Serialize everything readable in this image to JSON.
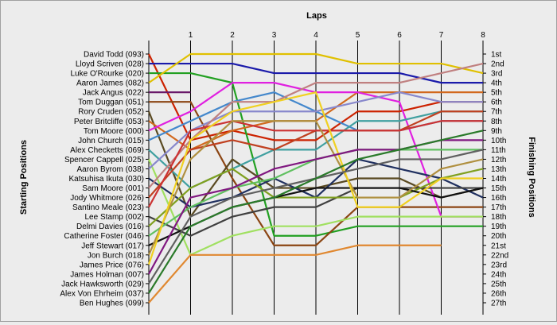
{
  "chart_data": {
    "type": "line",
    "title": "",
    "xlabel": "Laps",
    "ylabel_left": "Starting Positions",
    "ylabel_right": "Finishing Positions",
    "x": [
      0,
      1,
      2,
      3,
      4,
      5,
      6,
      7,
      8
    ],
    "x_tick_labels": [
      "1",
      "2",
      "3",
      "4",
      "5",
      "6",
      "7",
      "8"
    ],
    "y_range": [
      1,
      27
    ],
    "y_inverted": true,
    "grid": true,
    "grid_axis": "x",
    "starting_labels": [
      "David Todd (093)",
      "Lloyd Scriven (028)",
      "Luke O'Rourke (020)",
      "Aaron James (082)",
      "Jack Angus (022)",
      "Tom Duggan (051)",
      "Rory Cruden (052)",
      "Peter Britcliffe (053)",
      "Tom Moore (000)",
      "John Church (015)",
      "Alex Checketts (069)",
      "Spencer Cappell (025)",
      "Aaron Byrom (038)",
      "Katsuhisa Ikuta (030)",
      "Sam Moore (001)",
      "Jody Whitmore (026)",
      "Santino Meale (023)",
      "Lee Stamp (002)",
      "Delmi Davies (016)",
      "Catherine Foster (046)",
      "Jeff Stewart (017)",
      "Jon Burch (018)",
      "James Price (076)",
      "James Holman (007)",
      "Jack Hawksworth (029)",
      "Alex Von Ehrheim (037)",
      "Ben Hughes (099)"
    ],
    "finishing_labels": [
      "1st",
      "2nd",
      "3rd",
      "4th",
      "5th",
      "6th",
      "7th",
      "8th",
      "9th",
      "10th",
      "11th",
      "12th",
      "13th",
      "14th",
      "15th",
      "16th",
      "17th",
      "18th",
      "19th",
      "20th",
      "21st",
      "22nd",
      "23rd",
      "24th",
      "25th",
      "26th",
      "27th"
    ],
    "series": [
      {
        "start": 1,
        "color": "#cc2200",
        "positions": [
          1,
          10,
          9,
          10,
          10,
          7,
          7,
          6,
          6
        ]
      },
      {
        "start": 2,
        "color": "#1a1aaa",
        "positions": [
          2,
          2,
          2,
          3,
          3,
          3,
          3,
          4,
          4
        ]
      },
      {
        "start": 3,
        "color": "#22a022",
        "positions": [
          3,
          3,
          4,
          20,
          20,
          19,
          19,
          19,
          19
        ]
      },
      {
        "start": 4,
        "color": "#e0c000",
        "positions": [
          4,
          1,
          1,
          1,
          1,
          2,
          2,
          2,
          3
        ]
      },
      {
        "start": 5,
        "color": "#6a1a6a",
        "positions": [
          5,
          5
        ]
      },
      {
        "start": 6,
        "color": "#8b4513",
        "positions": [
          6,
          6,
          14,
          21,
          21,
          17,
          17,
          17,
          17
        ]
      },
      {
        "start": 7,
        "color": "#5a4a22",
        "positions": [
          7,
          18,
          12,
          15,
          15,
          14,
          14,
          16,
          15
        ]
      },
      {
        "start": 8,
        "color": "#d2691e",
        "positions": [
          8,
          11,
          9,
          8,
          8,
          5,
          5,
          5,
          5
        ]
      },
      {
        "start": 9,
        "color": "#e020e0",
        "positions": [
          9,
          7,
          4,
          4,
          5,
          5,
          6,
          18,
          18
        ]
      },
      {
        "start": 10,
        "color": "#4488cc",
        "positions": [
          10,
          8,
          6,
          5,
          7,
          9,
          9,
          8,
          8
        ]
      },
      {
        "start": 11,
        "color": "#40a0a0",
        "positions": [
          11,
          15,
          13,
          11,
          11,
          8,
          8,
          7,
          7
        ]
      },
      {
        "start": 12,
        "color": "#a0e060",
        "positions": [
          12,
          22,
          20,
          19,
          19,
          18,
          18,
          18,
          18
        ]
      },
      {
        "start": 13,
        "color": "#8888cc",
        "positions": [
          13,
          9,
          7,
          7,
          7,
          6,
          5,
          6,
          6
        ]
      },
      {
        "start": 14,
        "color": "#203060",
        "positions": [
          14,
          17,
          16,
          14,
          16,
          12,
          13,
          14,
          16
        ]
      },
      {
        "start": 15,
        "color": "#c08080",
        "positions": [
          15,
          10,
          6,
          6,
          4,
          4,
          4,
          3,
          2
        ]
      },
      {
        "start": 16,
        "color": "#c04020",
        "positions": [
          16,
          11,
          10,
          11,
          9,
          9,
          9,
          7,
          7
        ]
      },
      {
        "start": 17,
        "color": "#cc3333",
        "positions": [
          17,
          9,
          8,
          9,
          9,
          9,
          9,
          8,
          8
        ]
      },
      {
        "start": 18,
        "color": "#404040",
        "positions": [
          18,
          20,
          18,
          17,
          17,
          15,
          15,
          15,
          15
        ]
      },
      {
        "start": 19,
        "color": "#80a020",
        "positions": [
          19,
          15,
          13,
          16,
          16,
          16,
          16,
          14,
          13
        ]
      },
      {
        "start": 20,
        "color": "#60c060",
        "positions": [
          20,
          17,
          15,
          14,
          12,
          11,
          11,
          11,
          11
        ]
      },
      {
        "start": 21,
        "color": "#111111",
        "positions": [
          21,
          19,
          17,
          16,
          15,
          15,
          15,
          16,
          15
        ]
      },
      {
        "start": 22,
        "color": "#b09040",
        "positions": [
          22,
          12,
          8,
          8,
          8,
          16,
          16,
          13,
          12
        ]
      },
      {
        "start": 23,
        "color": "#f0d020",
        "positions": [
          23,
          10,
          7,
          6,
          5,
          17,
          17,
          14,
          14
        ]
      },
      {
        "start": 24,
        "color": "#801880",
        "positions": [
          24,
          16,
          15,
          13,
          12,
          11,
          11,
          10,
          10
        ]
      },
      {
        "start": 25,
        "color": "#606060",
        "positions": [
          25,
          18,
          16,
          15,
          14,
          13,
          12,
          12,
          11
        ]
      },
      {
        "start": 26,
        "color": "#2a7a2a",
        "positions": [
          26,
          19,
          17,
          16,
          14,
          12,
          11,
          10,
          9
        ]
      },
      {
        "start": 27,
        "color": "#e08830",
        "positions": [
          27,
          22,
          22,
          22,
          22,
          21,
          21,
          21
        ]
      }
    ]
  }
}
